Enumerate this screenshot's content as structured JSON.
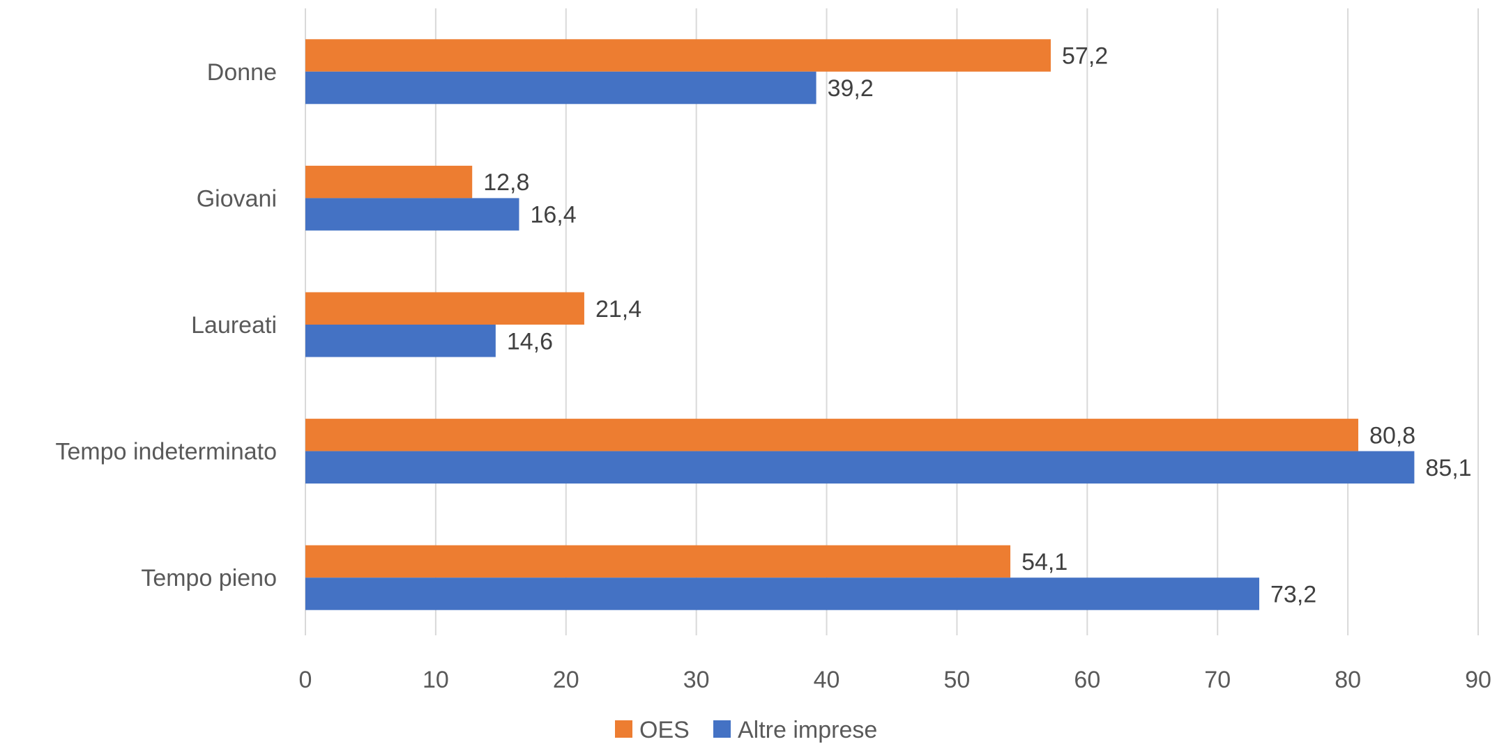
{
  "chart_data": {
    "type": "bar",
    "orientation": "horizontal",
    "categories": [
      "Donne",
      "Giovani",
      "Laureati",
      "Tempo indeterminato",
      "Tempo pieno"
    ],
    "series": [
      {
        "name": "OES",
        "values": [
          57.2,
          12.8,
          21.4,
          80.8,
          54.1
        ],
        "color": "#ED7D31",
        "labels": [
          "57,2",
          "12,8",
          "21,4",
          "80,8",
          "54,1"
        ]
      },
      {
        "name": "Altre imprese",
        "values": [
          39.2,
          16.4,
          14.6,
          85.1,
          73.2
        ],
        "color": "#4472C4",
        "labels": [
          "39,2",
          "16,4",
          "14,6",
          "85,1",
          "73,2"
        ]
      }
    ],
    "xlim": [
      0,
      90
    ],
    "xticks": [
      0,
      10,
      20,
      30,
      40,
      50,
      60,
      70,
      80,
      90
    ],
    "grid": true,
    "legend_position": "bottom"
  }
}
